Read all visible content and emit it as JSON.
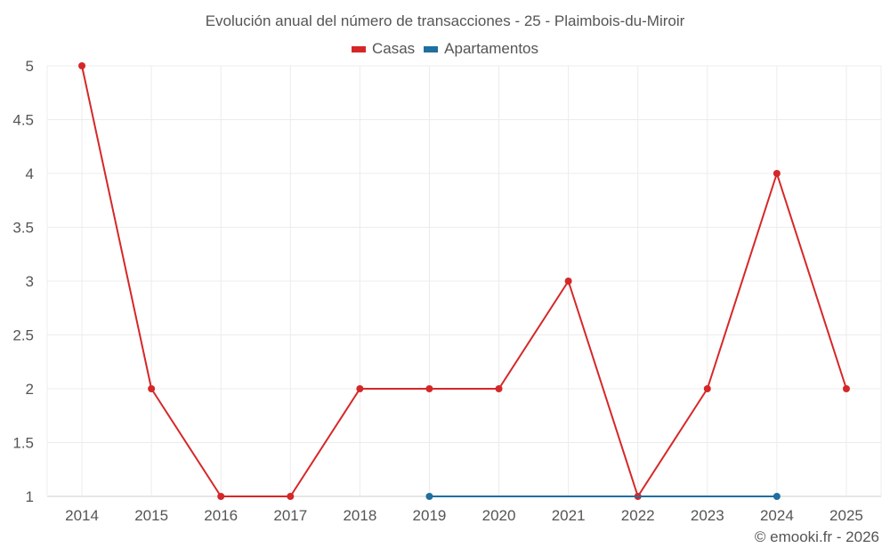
{
  "chart_data": {
    "type": "line",
    "title": "Evolución anual del número de transacciones - 25 - Plaimbois-du-Miroir",
    "xlabel": "",
    "ylabel": "",
    "x": [
      "2014",
      "2015",
      "2016",
      "2017",
      "2018",
      "2019",
      "2020",
      "2021",
      "2022",
      "2023",
      "2024",
      "2025"
    ],
    "series": [
      {
        "name": "Casas",
        "color": "#d62728",
        "values": [
          5,
          2,
          1,
          1,
          2,
          2,
          2,
          3,
          1,
          2,
          4,
          2
        ]
      },
      {
        "name": "Apartamentos",
        "color": "#1f6f9f",
        "values": [
          null,
          null,
          null,
          null,
          null,
          1,
          null,
          null,
          null,
          null,
          1,
          null
        ]
      }
    ],
    "ylim": [
      1,
      5
    ],
    "yticks": [
      "1",
      "1.5",
      "2",
      "2.5",
      "3",
      "3.5",
      "4",
      "4.5",
      "5"
    ],
    "grid": true,
    "legend": "top-center"
  },
  "credit": "© emooki.fr - 2026"
}
